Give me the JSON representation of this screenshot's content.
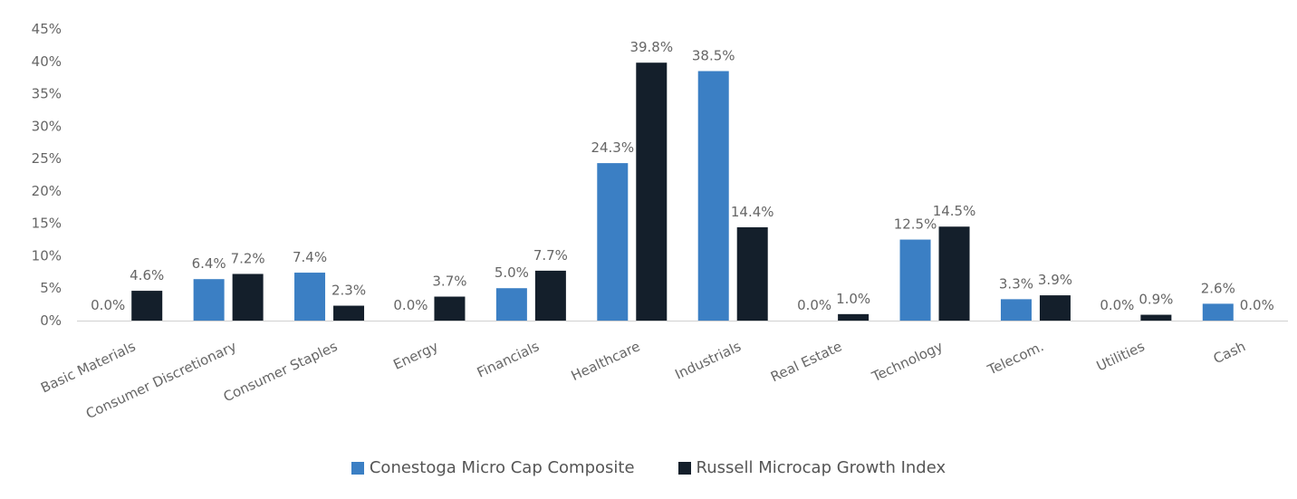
{
  "chart_data": {
    "type": "bar",
    "categories": [
      "Basic Materials",
      "Consumer Discretionary",
      "Consumer Staples",
      "Energy",
      "Financials",
      "Healthcare",
      "Industrials",
      "Real Estate",
      "Technology",
      "Telecom.",
      "Utilities",
      "Cash"
    ],
    "series": [
      {
        "name": "Conestoga Micro Cap Composite",
        "color": "#3b7fc4",
        "values": [
          0.0,
          6.4,
          7.4,
          0.0,
          5.0,
          24.3,
          38.5,
          0.0,
          12.5,
          3.3,
          0.0,
          2.6
        ],
        "labels": [
          "0.0%",
          "6.4%",
          "7.4%",
          "0.0%",
          "5.0%",
          "24.3%",
          "38.5%",
          "0.0%",
          "12.5%",
          "3.3%",
          "0.0%",
          "2.6%"
        ]
      },
      {
        "name": "Russell Microcap Growth Index",
        "color": "#141f2b",
        "values": [
          4.6,
          7.2,
          2.3,
          3.7,
          7.7,
          39.8,
          14.4,
          1.0,
          14.5,
          3.9,
          0.9,
          0.0
        ],
        "labels": [
          "4.6%",
          "7.2%",
          "2.3%",
          "3.7%",
          "7.7%",
          "39.8%",
          "14.4%",
          "1.0%",
          "14.5%",
          "3.9%",
          "0.9%",
          "0.0%"
        ]
      }
    ],
    "ylim": [
      0,
      45
    ],
    "yticks": [
      0,
      5,
      10,
      15,
      20,
      25,
      30,
      35,
      40,
      45
    ],
    "ytick_labels": [
      "0%",
      "5%",
      "10%",
      "15%",
      "20%",
      "25%",
      "30%",
      "35%",
      "40%",
      "45%"
    ],
    "grid": false,
    "legend_position": "bottom"
  }
}
